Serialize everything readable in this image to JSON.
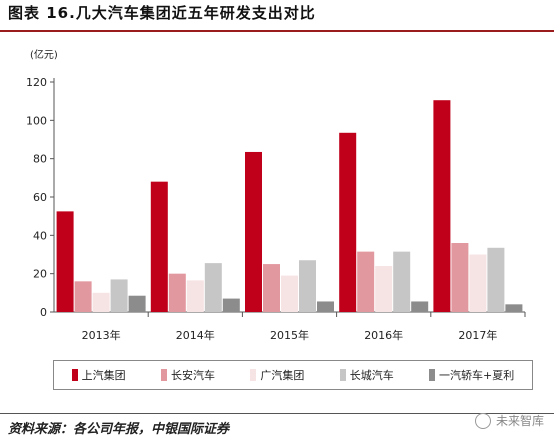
{
  "title": "图表 16.几大汽车集团近五年研发支出对比",
  "unit_label": "(亿元)",
  "source": "资料来源：各公司年报，中银国际证券",
  "watermark": "未来智库",
  "chart_data": {
    "type": "bar",
    "categories": [
      "2013年",
      "2014年",
      "2015年",
      "2016年",
      "2017年"
    ],
    "ylim": [
      0,
      120
    ],
    "yticks": [
      0,
      20,
      40,
      60,
      80,
      100,
      120
    ],
    "grid": false,
    "legend_position": "bottom",
    "series": [
      {
        "name": "上汽集团",
        "color": "#c0001a",
        "values": [
          52.5,
          68,
          83.5,
          93.5,
          110.5
        ]
      },
      {
        "name": "长安汽车",
        "color": "#e2989f",
        "values": [
          16,
          20,
          25,
          31.5,
          36
        ]
      },
      {
        "name": "广汽集团",
        "color": "#f6e3e4",
        "values": [
          10,
          16.5,
          19,
          24,
          30
        ]
      },
      {
        "name": "长城汽车",
        "color": "#c6c6c6",
        "values": [
          17,
          25.5,
          27,
          31.5,
          33.5
        ]
      },
      {
        "name": "一汽轿车+夏利",
        "color": "#8c8c8c",
        "values": [
          8.5,
          7,
          5.5,
          5.5,
          4
        ]
      }
    ]
  }
}
